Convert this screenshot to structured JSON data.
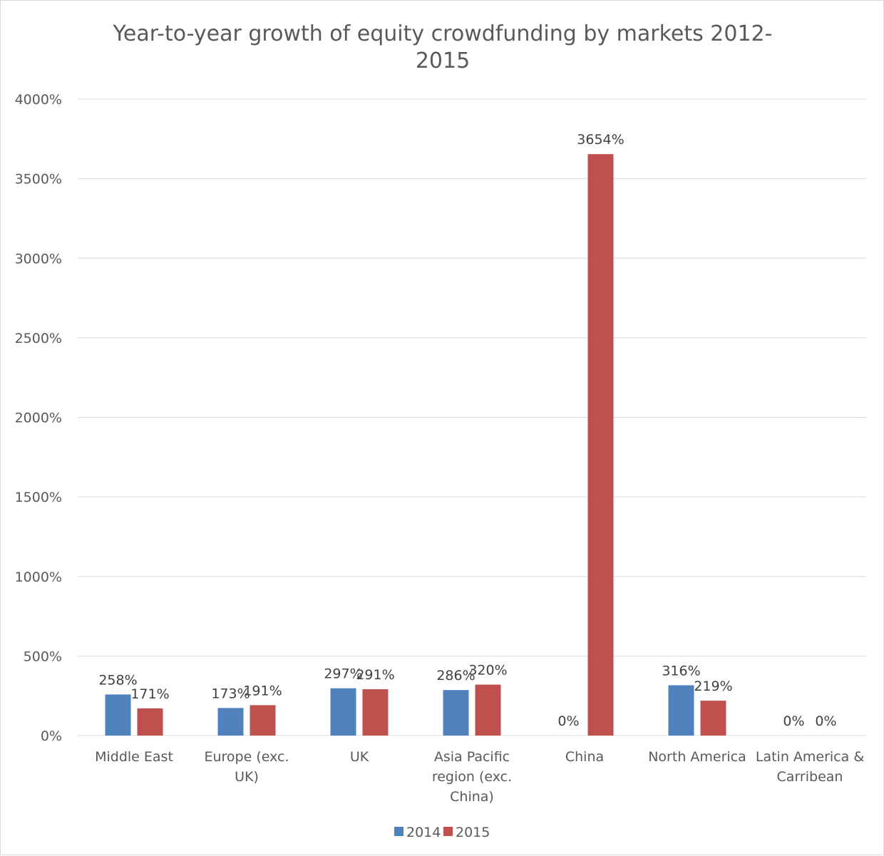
{
  "chart_data": {
    "type": "bar",
    "title": "Year-to-year growth of equity crowdfunding by markets 2012-2015",
    "title_lines": [
      "Year-to-year growth of equity crowdfunding by markets 2012-",
      "2015"
    ],
    "xlabel": "",
    "ylabel": "",
    "ylim": [
      0,
      4000
    ],
    "y_ticks": [
      0,
      500,
      1000,
      1500,
      2000,
      2500,
      3000,
      3500,
      4000
    ],
    "y_tick_labels": [
      "0%",
      "500%",
      "1000%",
      "1500%",
      "2000%",
      "2500%",
      "3000%",
      "3500%",
      "4000%"
    ],
    "grid": true,
    "legend_position": "bottom",
    "categories": [
      "Middle East",
      "Europe (exc. UK)",
      "UK",
      "Asia Pacific region (exc. China)",
      "China",
      "North America",
      "Latin America & Carribean"
    ],
    "category_label_lines": [
      [
        "Middle East"
      ],
      [
        "Europe (exc.",
        "UK)"
      ],
      [
        "UK"
      ],
      [
        "Asia Pacific",
        "region (exc.",
        "China)"
      ],
      [
        "China"
      ],
      [
        "North America"
      ],
      [
        "Latin America &",
        "Carribean"
      ]
    ],
    "series": [
      {
        "name": "2014",
        "color": "#4f81bd",
        "values": [
          258,
          173,
          297,
          286,
          0,
          316,
          0
        ],
        "labels": [
          "258%",
          "173%",
          "297%",
          "286%",
          "0%",
          "316%",
          "0%"
        ]
      },
      {
        "name": "2015",
        "color": "#c0504d",
        "values": [
          171,
          191,
          291,
          320,
          3654,
          219,
          0
        ],
        "labels": [
          "171%",
          "191%",
          "291%",
          "320%",
          "3654%",
          "219%",
          "0%"
        ]
      }
    ]
  }
}
